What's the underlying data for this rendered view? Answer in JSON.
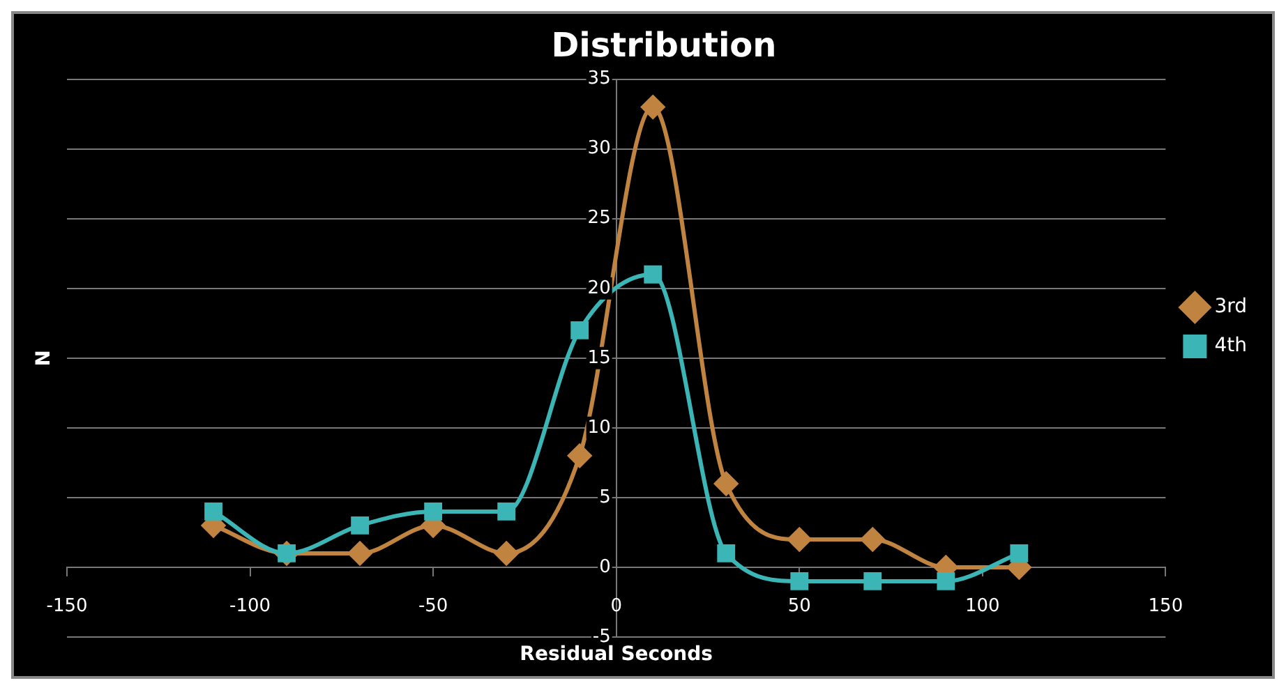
{
  "chart_data": {
    "type": "line",
    "title": "Distribution",
    "xlabel": "Residual Seconds",
    "ylabel": "N",
    "x": [
      -110,
      -90,
      -70,
      -50,
      -30,
      -10,
      10,
      30,
      50,
      70,
      90,
      110
    ],
    "series": [
      {
        "name": "3rd",
        "color": "#c08440",
        "marker": "diamond",
        "values": [
          3,
          1,
          1,
          3,
          1,
          8,
          33,
          6,
          2,
          2,
          0,
          0
        ]
      },
      {
        "name": "4th",
        "color": "#3bb5b5",
        "marker": "square",
        "values": [
          4,
          1,
          3,
          4,
          4,
          17,
          21,
          1,
          -1,
          -1,
          -1,
          1
        ]
      }
    ],
    "xlim": [
      -150,
      150
    ],
    "xticks": [
      -150,
      -100,
      -50,
      0,
      50,
      100,
      150
    ],
    "ylim": [
      -5,
      35
    ],
    "yticks": [
      -5,
      0,
      5,
      10,
      15,
      20,
      25,
      30,
      35
    ],
    "grid": "y",
    "legend": "right",
    "line_style": "solid"
  }
}
